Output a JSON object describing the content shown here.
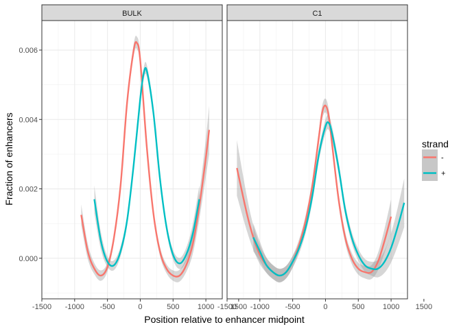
{
  "chart_data": {
    "type": "line",
    "xlabel": "Position relative to enhancer midpoint",
    "ylabel": "Fraction of enhancers",
    "xlim": [
      -1500,
      1250
    ],
    "ylim": [
      -0.00117,
      0.00685
    ],
    "xticks": [
      -1500,
      -1000,
      -500,
      0,
      500,
      1000,
      1500
    ],
    "xtick_labels": [
      "-1500",
      "-1000",
      "-500",
      "0",
      "500",
      "1000",
      "1500"
    ],
    "yticks": [
      0.0,
      0.002,
      0.004,
      0.006
    ],
    "ytick_labels": [
      "0.000",
      "0.002",
      "0.004",
      "0.006"
    ],
    "grid": true,
    "confidence_band": true,
    "legend": {
      "title": "strand",
      "position": "right",
      "entries": [
        {
          "label": "-",
          "color": "#F8766D"
        },
        {
          "label": "+",
          "color": "#00BFC4"
        }
      ]
    },
    "panels": [
      {
        "label": "BULK",
        "series": [
          {
            "name": "-",
            "color": "#F8766D",
            "x": [
              -900,
              -800,
              -700,
              -600,
              -500,
              -400,
              -300,
              -200,
              -100,
              -50,
              0,
              100,
              200,
              300,
              400,
              500,
              600,
              700,
              800,
              900,
              1000,
              1050
            ],
            "y": [
              0.00125,
              0.0002,
              -0.0003,
              -0.0005,
              -0.00025,
              0.0006,
              0.0021,
              0.0045,
              0.006,
              0.0062,
              0.0057,
              0.0032,
              0.0013,
              0.0002,
              -0.0003,
              -0.0005,
              -0.0005,
              -0.0002,
              0.0004,
              0.0015,
              0.0029,
              0.0037
            ],
            "band": [
              0.0003,
              0.00022,
              0.00016,
              0.00015,
              0.00013,
              0.00013,
              0.00014,
              0.00015,
              0.00017,
              0.00018,
              0.00017,
              0.00015,
              0.00013,
              0.00013,
              0.00013,
              0.00015,
              0.00017,
              0.0002,
              0.00028,
              0.00038,
              0.00055,
              0.0007
            ]
          },
          {
            "name": "+",
            "color": "#00BFC4",
            "x": [
              -700,
              -600,
              -500,
              -400,
              -300,
              -200,
              -100,
              0,
              50,
              100,
              200,
              300,
              400,
              500,
              600,
              700,
              800,
              900
            ],
            "y": [
              0.0017,
              0.0005,
              -0.0001,
              -0.0002,
              0.0002,
              0.0011,
              0.0027,
              0.0046,
              0.0053,
              0.0054,
              0.0042,
              0.0023,
              0.0009,
              0.0001,
              -0.00015,
              0.0001,
              0.0007,
              0.0017
            ],
            "band": [
              0.0004,
              0.00025,
              0.00015,
              0.00014,
              0.00014,
              0.00014,
              0.00015,
              0.00017,
              0.00017,
              0.00017,
              0.00015,
              0.00014,
              0.00013,
              0.00014,
              0.00016,
              0.0002,
              0.00028,
              0.0004
            ]
          }
        ]
      },
      {
        "label": "C1",
        "series": [
          {
            "name": "-",
            "color": "#F8766D",
            "x": [
              -1350,
              -1200,
              -1100,
              -1000,
              -900,
              -800,
              -700,
              -600,
              -500,
              -400,
              -300,
              -200,
              -100,
              -50,
              0,
              50,
              100,
              200,
              300,
              400,
              500,
              600,
              700,
              800,
              900,
              1000
            ],
            "y": [
              0.0026,
              0.0013,
              0.0006,
              0.0001,
              -0.0002,
              -0.0004,
              -0.0005,
              -0.0004,
              -0.0001,
              0.0004,
              0.0011,
              0.0021,
              0.0035,
              0.0042,
              0.0044,
              0.0041,
              0.0033,
              0.0017,
              0.0006,
              0.0,
              -0.0003,
              -0.0004,
              -0.0004,
              -0.0001,
              0.0005,
              0.0012
            ],
            "band": [
              0.0008,
              0.0005,
              0.00035,
              0.00027,
              0.00022,
              0.0002,
              0.0002,
              0.00018,
              0.00017,
              0.00016,
              0.00016,
              0.00017,
              0.00019,
              0.0002,
              0.0002,
              0.0002,
              0.00019,
              0.00017,
              0.00016,
              0.00016,
              0.00017,
              0.00018,
              0.0002,
              0.00025,
              0.00035,
              0.0005
            ]
          },
          {
            "name": "+",
            "color": "#00BFC4",
            "x": [
              -1100,
              -1000,
              -900,
              -800,
              -700,
              -600,
              -500,
              -400,
              -300,
              -200,
              -100,
              0,
              50,
              100,
              200,
              300,
              400,
              500,
              600,
              700,
              800,
              900,
              1000,
              1100,
              1200
            ],
            "y": [
              0.0006,
              0.0002,
              -0.0002,
              -0.0004,
              -0.0005,
              -0.0004,
              -0.0001,
              0.0003,
              0.0009,
              0.0018,
              0.003,
              0.0038,
              0.0039,
              0.0036,
              0.0026,
              0.0014,
              0.0006,
              0.0001,
              -0.0002,
              -0.0003,
              -0.0003,
              -0.0001,
              0.0003,
              0.0009,
              0.0016
            ],
            "band": [
              0.0004,
              0.00028,
              0.00022,
              0.0002,
              0.00019,
              0.00018,
              0.00017,
              0.00016,
              0.00016,
              0.00017,
              0.00018,
              0.0002,
              0.0002,
              0.0002,
              0.00018,
              0.00016,
              0.00016,
              0.00017,
              0.00018,
              0.0002,
              0.00025,
              0.00032,
              0.00042,
              0.00055,
              0.0007
            ]
          }
        ]
      }
    ]
  }
}
